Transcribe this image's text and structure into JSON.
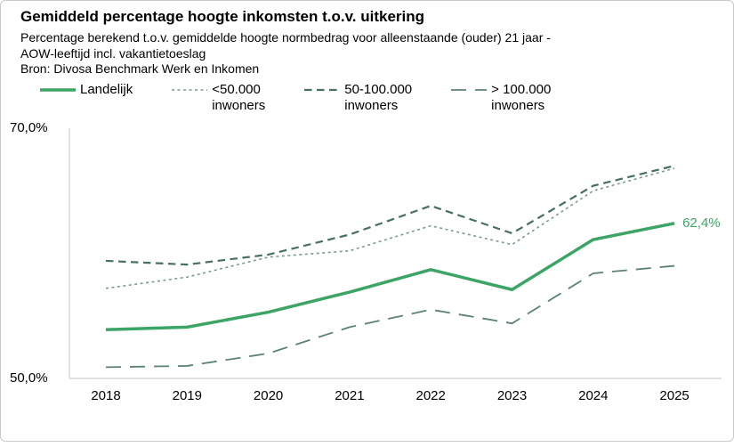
{
  "header": {
    "title": "Gemiddeld percentage hoogte inkomsten t.o.v. uitkering",
    "subtitle_line1": "Percentage berekend t.o.v. gemiddelde hoogte normbedrag voor alleenstaande (ouder) 21 jaar -",
    "subtitle_line2": "AOW-leeftijd incl. vakantietoeslag",
    "source": "Bron: Divosa Benchmark Werk en Inkomen"
  },
  "legend": {
    "items": [
      {
        "key": "landelijk",
        "label": "Landelijk",
        "label2": "",
        "style": "solid",
        "color": "#3CA565"
      },
      {
        "key": "lt-50000",
        "label": "<50.000",
        "label2": "inwoners",
        "style": "dot",
        "color": "#7A9B8E"
      },
      {
        "key": "50-100000",
        "label": "50-100.000",
        "label2": "inwoners",
        "style": "dash",
        "color": "#48705F"
      },
      {
        "key": "gt-100000",
        "label": "> 100.000",
        "label2": "inwoners",
        "style": "longdash",
        "color": "#5C8274"
      }
    ]
  },
  "chart_data": {
    "type": "line",
    "x": [
      2018,
      2019,
      2020,
      2021,
      2022,
      2023,
      2024,
      2025
    ],
    "series": [
      {
        "name": "Landelijk",
        "style": "solid",
        "color": "#3CA565",
        "values": [
          53.9,
          54.1,
          55.3,
          56.9,
          58.7,
          57.1,
          61.1,
          62.4
        ]
      },
      {
        "name": "<50.000 inwoners",
        "style": "dot",
        "color": "#7A9B8E",
        "values": [
          57.2,
          58.1,
          59.7,
          60.2,
          62.2,
          60.7,
          65.0,
          66.8
        ]
      },
      {
        "name": "50-100.000 inwoners",
        "style": "dash",
        "color": "#48705F",
        "values": [
          59.4,
          59.1,
          59.9,
          61.5,
          63.8,
          61.6,
          65.4,
          67.0
        ]
      },
      {
        "name": "> 100.000 inwoners",
        "style": "longdash",
        "color": "#5C8274",
        "values": [
          50.9,
          51.0,
          52.0,
          54.1,
          55.5,
          54.4,
          58.4,
          59.0
        ]
      }
    ],
    "ylim": [
      50,
      70
    ],
    "yticks": [
      {
        "value": 70,
        "label": "70,0%"
      },
      {
        "value": 50,
        "label": "50,0%"
      }
    ],
    "xlabel": "",
    "ylabel": "",
    "grid": false,
    "legend_position": "top",
    "axis_color": "#d6d6d6",
    "end_label": {
      "text": "62,4%",
      "value": 62.4,
      "series": "Landelijk",
      "color": "#3CA565"
    }
  }
}
